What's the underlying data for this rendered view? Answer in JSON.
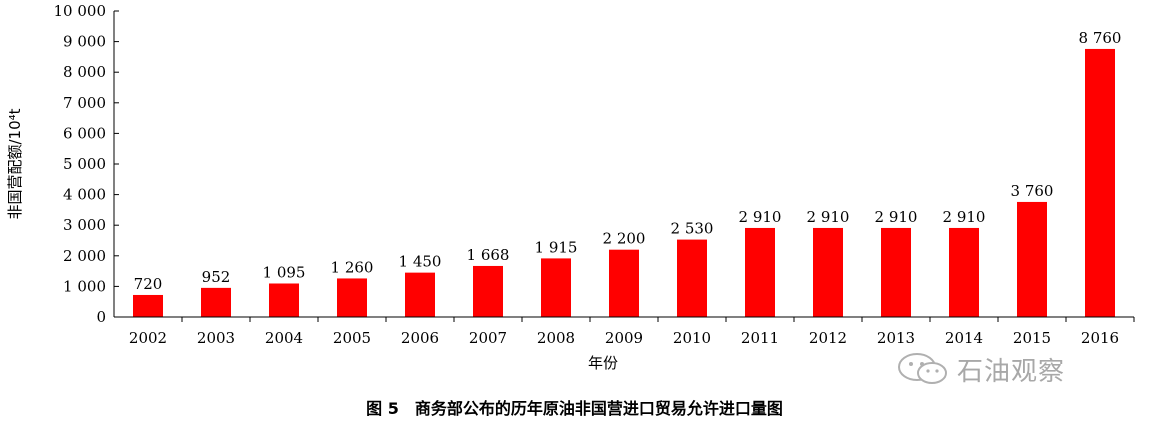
{
  "chart_data": {
    "type": "bar",
    "categories": [
      "2002",
      "2003",
      "2004",
      "2005",
      "2006",
      "2007",
      "2008",
      "2009",
      "2010",
      "2011",
      "2012",
      "2013",
      "2014",
      "2015",
      "2016"
    ],
    "values": [
      720,
      952,
      1095,
      1260,
      1450,
      1668,
      1915,
      2200,
      2530,
      2910,
      2910,
      2910,
      2910,
      3760,
      8760
    ],
    "data_labels": [
      "720",
      "952",
      "1 095",
      "1 260",
      "1 450",
      "1 668",
      "1 915",
      "2 200",
      "2 530",
      "2 910",
      "2 910",
      "2 910",
      "2 910",
      "3 760",
      "8 760"
    ],
    "xlabel": "年份",
    "ylabel": "非国营配额/10⁴t",
    "ylim": [
      0,
      10000
    ],
    "yticks": [
      0,
      1000,
      2000,
      3000,
      4000,
      5000,
      6000,
      7000,
      8000,
      9000,
      10000
    ],
    "ytick_labels": [
      "0",
      "1 000",
      "2 000",
      "3 000",
      "4 000",
      "5 000",
      "6 000",
      "7 000",
      "8 000",
      "9 000",
      "10 000"
    ],
    "bar_color": "#ff0000",
    "grid": false,
    "legend": "none"
  },
  "caption": "图 5　商务部公布的历年原油非国营进口贸易允许进口量图",
  "watermark": {
    "text": "石油观察",
    "icon": "wechat-icon"
  }
}
